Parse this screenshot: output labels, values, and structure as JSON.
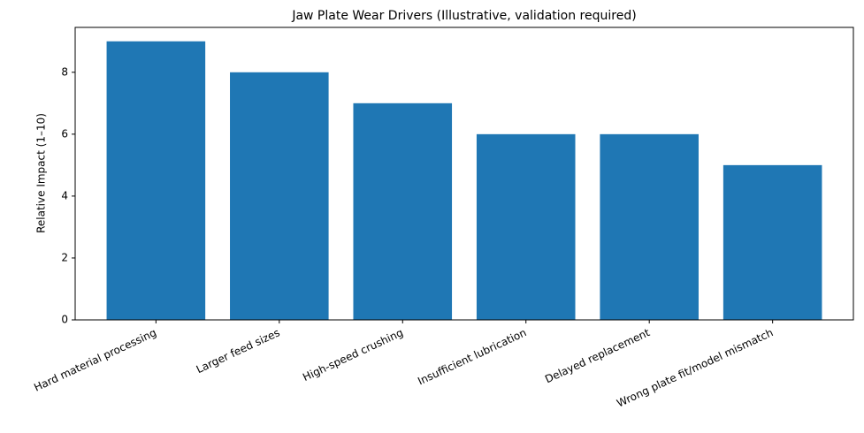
{
  "chart_data": {
    "type": "bar",
    "title": "Jaw Plate Wear Drivers (Illustrative, validation required)",
    "y_label": "Relative Impact (1–10)",
    "categories": [
      "Hard material processing",
      "Larger feed sizes",
      "High-speed crushing",
      "Insufficient lubrication",
      "Delayed replacement",
      "Wrong plate fit/model mismatch"
    ],
    "values": [
      9,
      8,
      7,
      6,
      6,
      5
    ],
    "color": "#1f77b4",
    "ylim": [
      0,
      9.45
    ],
    "yticks": [
      0,
      2,
      4,
      6,
      8
    ],
    "grid": false
  }
}
